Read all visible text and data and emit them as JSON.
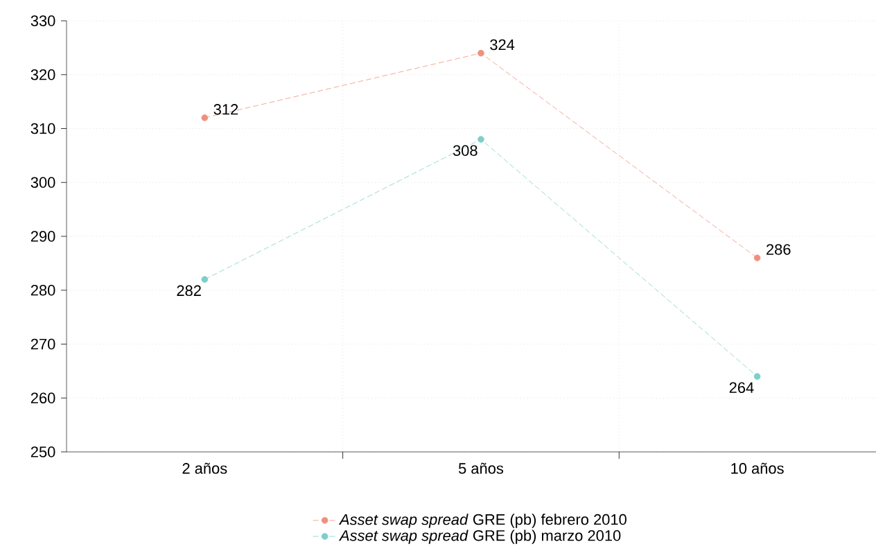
{
  "chart_data": {
    "type": "line",
    "categories": [
      "2 años",
      "5 años",
      "10 años"
    ],
    "series": [
      {
        "name": "*Asset swap spread* GRE (pb) febrero 2010",
        "color": "#f0907c",
        "values": [
          312,
          324,
          286
        ]
      },
      {
        "name": "*Asset swap spread* GRE (pb) marzo 2010",
        "color": "#7ecfc9",
        "values": [
          282,
          308,
          264
        ]
      }
    ],
    "ylim": [
      250,
      330
    ],
    "yticks": [
      250,
      260,
      270,
      280,
      290,
      300,
      310,
      320,
      330
    ],
    "grid": true,
    "legend": "bottom",
    "marker": "circle",
    "line_style": "dashed",
    "data_labels": true
  }
}
